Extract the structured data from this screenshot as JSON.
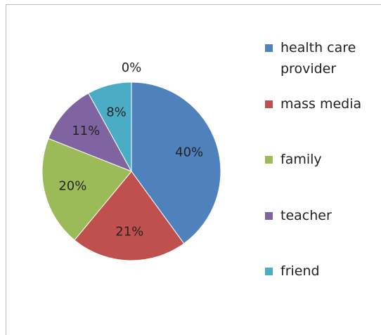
{
  "chart_data": {
    "type": "pie",
    "categories": [
      "health care provider",
      "mass media",
      "family",
      "teacher",
      "friend",
      null
    ],
    "values": [
      40,
      21,
      20,
      11,
      8,
      0
    ],
    "value_labels": [
      "40%",
      "21%",
      "20%",
      "11%",
      "8%",
      "0%"
    ],
    "colors": [
      "#4f81bd",
      "#c0504d",
      "#9bbb59",
      "#8064a2",
      "#4bacc6",
      "#f79646"
    ],
    "legend": "right"
  }
}
